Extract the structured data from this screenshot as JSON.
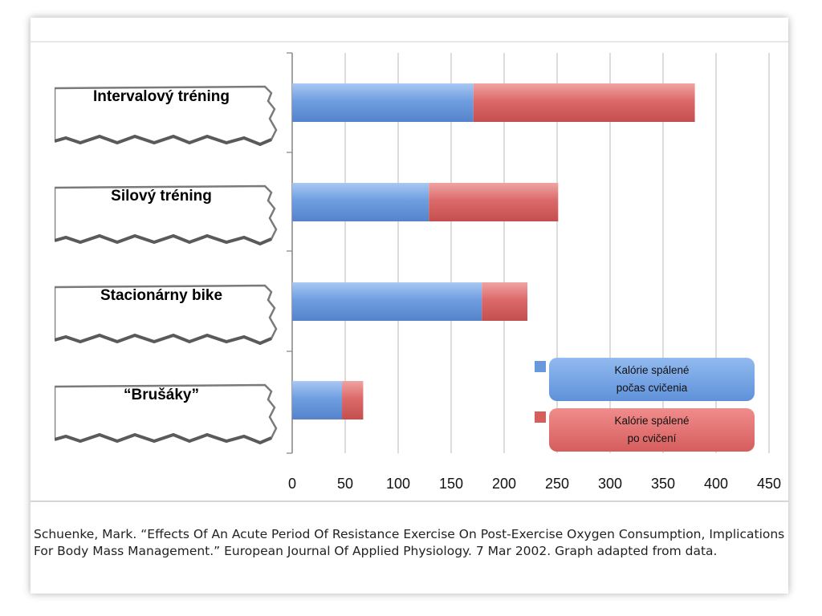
{
  "chart_data": {
    "type": "bar",
    "orientation": "horizontal",
    "stacked": true,
    "categories": [
      "Intervalový tréning",
      "Silový tréning",
      "Stacionárny bike",
      "“Brušáky”"
    ],
    "series": [
      {
        "name": "Kalórie spálené\npočas cvičenia",
        "color": "#6a98dc",
        "values": [
          171,
          129,
          179,
          47
        ]
      },
      {
        "name": "Kalórie spálené\npo cvičení",
        "color": "#d85e5e",
        "values": [
          209,
          122,
          43,
          20
        ]
      }
    ],
    "xlim": [
      0,
      450
    ],
    "ticks": [
      0,
      50,
      100,
      150,
      200,
      250,
      300,
      350,
      400,
      450
    ],
    "grid": true,
    "legend_position": "bottom-right"
  },
  "citation": "Schuenke, Mark. “Effects Of An Acute Period Of Resistance Exercise On Post-Exercise Oxygen Consumption, Implications For Body Mass Management.” European Journal Of Applied Physiology. 7 Mar 2002. Graph adapted from data."
}
